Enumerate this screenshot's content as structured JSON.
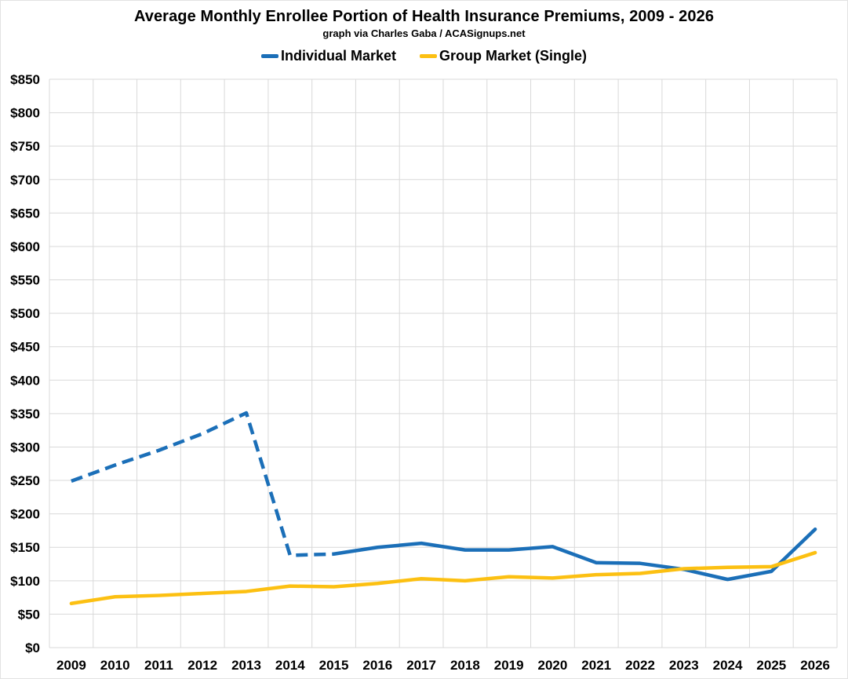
{
  "chart_data": {
    "type": "line",
    "title": "Average Monthly Enrollee Portion of Health Insurance Premiums, 2009 - 2026",
    "subtitle": "graph via Charles Gaba / ACASignups.net",
    "categories": [
      "2009",
      "2010",
      "2011",
      "2012",
      "2013",
      "2014",
      "2015",
      "2016",
      "2017",
      "2018",
      "2019",
      "2020",
      "2021",
      "2022",
      "2023",
      "2024",
      "2025",
      "2026"
    ],
    "series": [
      {
        "name": "Individual Market",
        "color": "#1B6FB8",
        "values": [
          249,
          273,
          295,
          320,
          351,
          138,
          140,
          150,
          156,
          146,
          146,
          151,
          127,
          126,
          117,
          102,
          114,
          177
        ],
        "dashed_through_category": "2015",
        "line_width": 4.5
      },
      {
        "name": "Group Market (Single)",
        "color": "#FCC012",
        "values": [
          66,
          76,
          78,
          81,
          84,
          92,
          91,
          96,
          103,
          100,
          106,
          104,
          109,
          111,
          118,
          120,
          121,
          142
        ],
        "line_width": 4.5
      }
    ],
    "y_axis": {
      "min": 0,
      "max": 850,
      "tick_step": 50,
      "tick_prefix": "$"
    },
    "x_axis": {
      "labels_bold": true
    },
    "grid": {
      "show": true,
      "color": "#D9D9D9"
    },
    "legend_position": "top",
    "plot_background": "#FFFFFF"
  }
}
